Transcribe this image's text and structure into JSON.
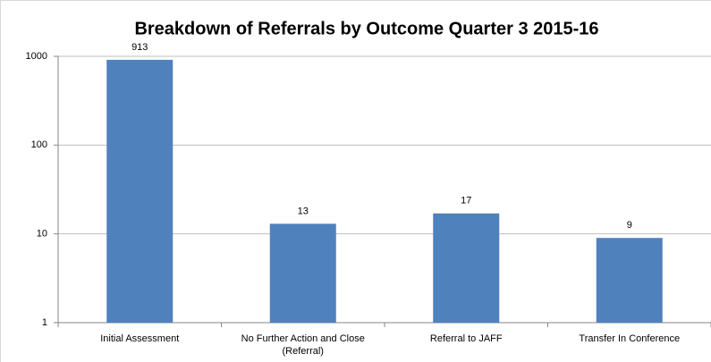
{
  "chart_data": {
    "type": "bar",
    "title": "Breakdown of Referrals by Outcome Quarter 3 2015-16",
    "categories": [
      "Initial Assessment",
      "No Further Action and Close (Referral)",
      "Referral to JAFF",
      "Transfer In Conference"
    ],
    "values": [
      913,
      13,
      17,
      9
    ],
    "color": "#4f81bd",
    "ylim": [
      1,
      1000
    ],
    "yticks": [
      1,
      10,
      100,
      1000
    ],
    "log_scale": true,
    "grid": true
  }
}
